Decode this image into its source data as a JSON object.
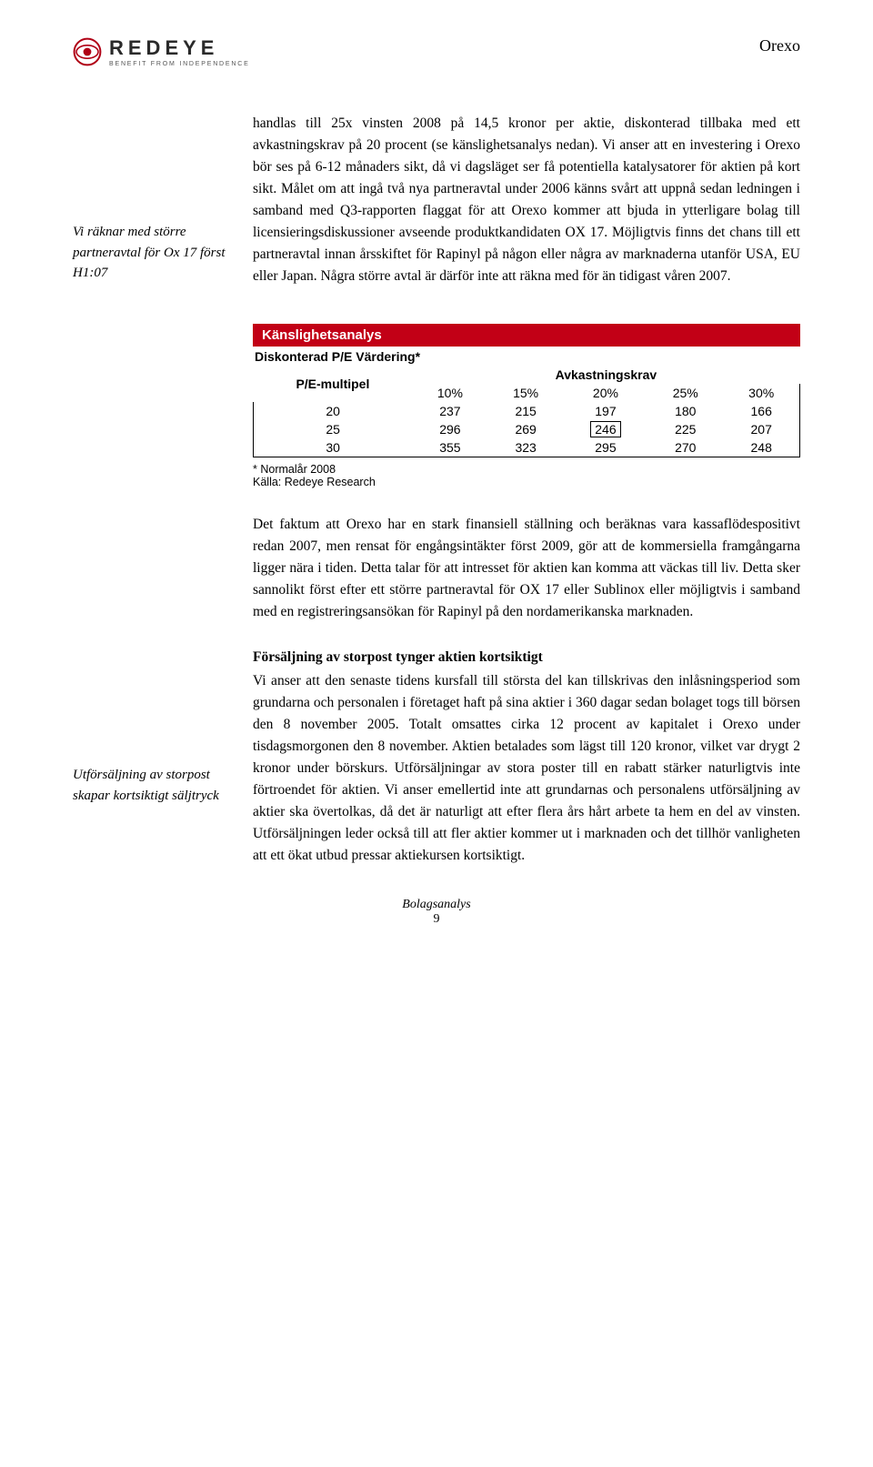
{
  "header": {
    "logo_wordmark": "REDEYE",
    "logo_tagline": "BENEFIT FROM INDEPENDENCE",
    "doc_title": "Orexo"
  },
  "block1": {
    "sidebar": "Vi räknar med större partneravtal för Ox 17 först H1:07",
    "body": "handlas till 25x vinsten 2008 på 14,5 kronor per aktie, diskonterad tillbaka med ett avkastningskrav på 20 procent (se känslighetsanalys nedan). Vi anser att en investering i Orexo bör ses på 6-12 månaders sikt, då vi dagsläget ser få potentiella katalysatorer för aktien på kort sikt. Målet om att ingå två nya partneravtal under 2006 känns svårt att uppnå sedan ledningen i samband med Q3-rapporten flaggat för att Orexo kommer att bjuda in ytterligare bolag till licensieringsdiskussioner avseende produktkandidaten OX 17. Möjligtvis finns det chans till ett partneravtal innan årsskiftet för Rapinyl på någon eller några av marknaderna utanför USA, EU eller Japan. Några större avtal är därför inte att räkna med för än tidigast våren 2007."
  },
  "table": {
    "title": "Känslighetsanalys",
    "subtitle": "Diskonterad P/E Värdering*",
    "group_header": "Avkastningskrav",
    "row_header": "P/E-multipel",
    "columns": [
      "10%",
      "15%",
      "20%",
      "25%",
      "30%"
    ],
    "rows": [
      {
        "pe": "20",
        "values": [
          "237",
          "215",
          "197",
          "180",
          "166"
        ]
      },
      {
        "pe": "25",
        "values": [
          "296",
          "269",
          "246",
          "225",
          "207"
        ]
      },
      {
        "pe": "30",
        "values": [
          "355",
          "323",
          "295",
          "270",
          "248"
        ]
      }
    ],
    "highlight": {
      "row": 1,
      "col": 2
    },
    "footnote": "* Normalår 2008",
    "source": "Källa: Redeye Research",
    "colors": {
      "header_bg": "#c20016",
      "header_fg": "#ffffff",
      "border": "#000000"
    }
  },
  "para2": "Det faktum att Orexo har en stark finansiell ställning och beräknas vara kassaflödespositivt redan 2007, men rensat för engångsintäkter först 2009, gör att de kommersiella framgångarna ligger nära i tiden. Detta talar för att intresset för aktien kan komma att väckas till liv. Detta sker sannolikt först efter ett större partneravtal för OX 17 eller Sublinox eller möjligtvis i samband med en registreringsansökan för Rapinyl på den nordamerikanska marknaden.",
  "block3": {
    "sidebar": "Utförsäljning av storpost skapar kortsiktigt säljtryck",
    "title": "Försäljning av storpost tynger aktien kortsiktigt",
    "body": "Vi anser att den senaste tidens kursfall till största del kan tillskrivas den inlåsningsperiod som grundarna och personalen i företaget haft på sina aktier i 360 dagar sedan bolaget togs till börsen den 8 november 2005. Totalt omsattes cirka 12 procent av kapitalet i Orexo under tisdagsmorgonen den 8 november. Aktien betalades som lägst till 120 kronor, vilket var drygt 2 kronor under börskurs. Utförsäljningar av stora poster till en rabatt stärker naturligtvis inte förtroendet för aktien. Vi anser emellertid inte att grundarnas och personalens utförsäljning av aktier ska övertolkas, då det är naturligt att efter flera års hårt arbete ta hem en del av vinsten. Utförsäljningen leder också till att fler aktier kommer ut i marknaden och det tillhör vanligheten att ett ökat utbud pressar aktiekursen kortsiktigt."
  },
  "footer": {
    "label": "Bolagsanalys",
    "page": "9"
  }
}
